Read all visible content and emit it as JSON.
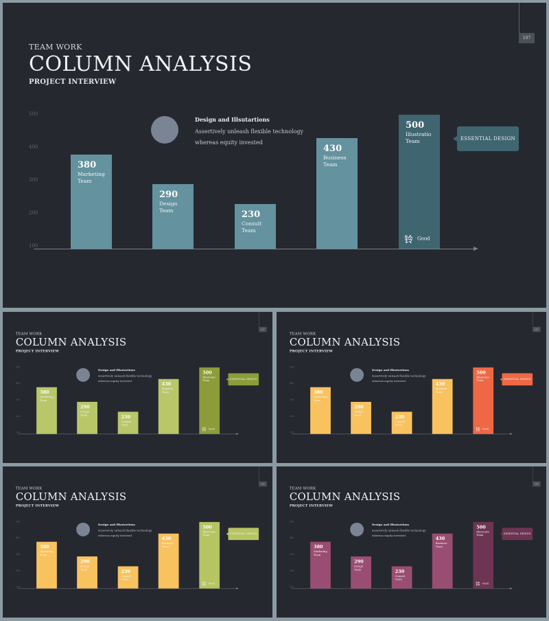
{
  "slide": {
    "kicker": "TEAM WORK",
    "title": "COLUMN ANALYSIS",
    "subtitle": "PROJECT INTERVIEW",
    "page_number": "107",
    "note_title": "Design and Illsutartions",
    "note_body": "Assertively unleash flexible technology whereas equity invested",
    "callout": "ESSENTIAL DESIGN",
    "good_icon": "铃",
    "good_label": "Good"
  },
  "chart_data": {
    "type": "bar",
    "categories": [
      "Marketing Team",
      "Design Team",
      "Consult Team",
      "Business Team",
      "Illustratio Team"
    ],
    "values": [
      380,
      290,
      230,
      430,
      500
    ],
    "yticks": [
      "500",
      "400",
      "300",
      "200",
      "100"
    ],
    "ylim": [
      100,
      500
    ]
  },
  "themes": [
    {
      "bars": [
        "#64929f",
        "#64929f",
        "#64929f",
        "#64929f",
        "#3f6571"
      ],
      "callout": "#3f6571",
      "circle": "#7a8495"
    },
    {
      "bars": [
        "#b9c769",
        "#b9c769",
        "#b9c769",
        "#b9c769",
        "#8c9c39"
      ],
      "callout": "#8c9c39",
      "circle": "#7a8495"
    },
    {
      "bars": [
        "#f8c25f",
        "#f8c25f",
        "#f8c25f",
        "#f8c25f",
        "#ee6845"
      ],
      "callout": "#ee6845",
      "circle": "#7a8495"
    },
    {
      "bars": [
        "#f8c25f",
        "#f8c25f",
        "#f8c25f",
        "#f8c25f",
        "#b6c462"
      ],
      "callout": "#b6c462",
      "circle": "#7a8495"
    },
    {
      "bars": [
        "#9a4d72",
        "#9a4d72",
        "#9a4d72",
        "#9a4d72",
        "#6d3553"
      ],
      "callout": "#6d3553",
      "circle": "#7a8495"
    }
  ]
}
